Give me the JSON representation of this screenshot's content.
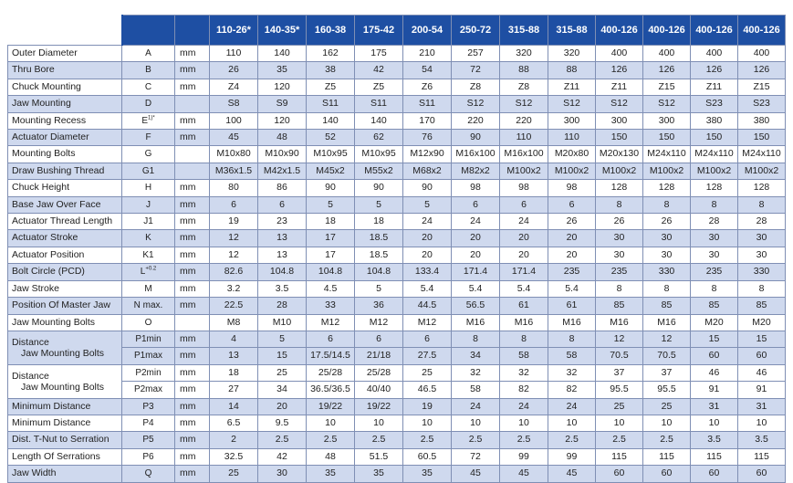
{
  "columns": [
    "110-26*",
    "140-35*",
    "160-38",
    "175-42",
    "200-54",
    "250-72",
    "315-88",
    "315-88",
    "400-126",
    "400-126",
    "400-126",
    "400-126"
  ],
  "rows": [
    {
      "name": "Outer Diameter",
      "sym": "A",
      "unit": "mm",
      "shade": false,
      "values": [
        "110",
        "140",
        "162",
        "175",
        "210",
        "257",
        "320",
        "320",
        "400",
        "400",
        "400",
        "400"
      ]
    },
    {
      "name": "Thru Bore",
      "sym": "B",
      "unit": "mm",
      "shade": true,
      "values": [
        "26",
        "35",
        "38",
        "42",
        "54",
        "72",
        "88",
        "88",
        "126",
        "126",
        "126",
        "126"
      ]
    },
    {
      "name": "Chuck Mounting",
      "sym": "C",
      "unit": "mm",
      "shade": false,
      "values": [
        "Z4",
        "120",
        "Z5",
        "Z5",
        "Z6",
        "Z8",
        "Z8",
        "Z11",
        "Z11",
        "Z15",
        "Z11",
        "Z15"
      ]
    },
    {
      "name": "Jaw Mounting",
      "sym": "D",
      "unit": "",
      "shade": true,
      "values": [
        "S8",
        "S9",
        "S11",
        "S11",
        "S11",
        "S12",
        "S12",
        "S12",
        "S12",
        "S12",
        "S23",
        "S23"
      ]
    },
    {
      "name": "Mounting Recess",
      "sym": "E",
      "sym_sup": "1)*",
      "unit": "mm",
      "shade": false,
      "values": [
        "100",
        "120",
        "140",
        "140",
        "170",
        "220",
        "220",
        "300",
        "300",
        "300",
        "380",
        "380"
      ]
    },
    {
      "name": "Actuator Diameter",
      "sym": "F",
      "unit": "mm",
      "shade": true,
      "values": [
        "45",
        "48",
        "52",
        "62",
        "76",
        "90",
        "110",
        "110",
        "150",
        "150",
        "150",
        "150"
      ]
    },
    {
      "name": "Mounting Bolts",
      "sym": "G",
      "unit": "",
      "shade": false,
      "values": [
        "M10x80",
        "M10x90",
        "M10x95",
        "M10x95",
        "M12x90",
        "M16x100",
        "M16x100",
        "M20x80",
        "M20x130",
        "M24x110",
        "M24x110",
        "M24x110"
      ]
    },
    {
      "name": "Draw Bushing Thread",
      "sym": "G1",
      "unit": "",
      "shade": true,
      "values": [
        "M36x1.5",
        "M42x1.5",
        "M45x2",
        "M55x2",
        "M68x2",
        "M82x2",
        "M100x2",
        "M100x2",
        "M100x2",
        "M100x2",
        "M100x2",
        "M100x2"
      ]
    },
    {
      "name": "Chuck Height",
      "sym": "H",
      "unit": "mm",
      "shade": false,
      "values": [
        "80",
        "86",
        "90",
        "90",
        "90",
        "98",
        "98",
        "98",
        "128",
        "128",
        "128",
        "128"
      ]
    },
    {
      "name": "Base Jaw Over Face",
      "sym": "J",
      "unit": "mm",
      "shade": true,
      "values": [
        "6",
        "6",
        "5",
        "5",
        "5",
        "6",
        "6",
        "6",
        "8",
        "8",
        "8",
        "8"
      ]
    },
    {
      "name": "Actuator Thread Length",
      "sym": "J1",
      "unit": "mm",
      "shade": false,
      "values": [
        "19",
        "23",
        "18",
        "18",
        "24",
        "24",
        "24",
        "26",
        "26",
        "26",
        "28",
        "28"
      ]
    },
    {
      "name": "Actuator Stroke",
      "sym": "K",
      "unit": "mm",
      "shade": true,
      "values": [
        "12",
        "13",
        "17",
        "18.5",
        "20",
        "20",
        "20",
        "20",
        "30",
        "30",
        "30",
        "30"
      ]
    },
    {
      "name": "Actuator Position",
      "sym": "K1",
      "unit": "mm",
      "shade": false,
      "values": [
        "12",
        "13",
        "17",
        "18.5",
        "20",
        "20",
        "20",
        "20",
        "30",
        "30",
        "30",
        "30"
      ]
    },
    {
      "name": "Bolt Circle (PCD)",
      "sym": "L",
      "sym_sup": "+0.2",
      "unit": "mm",
      "shade": true,
      "values": [
        "82.6",
        "104.8",
        "104.8",
        "104.8",
        "133.4",
        "171.4",
        "171.4",
        "235",
        "235",
        "330",
        "235",
        "330"
      ]
    },
    {
      "name": "Jaw Stroke",
      "sym": "M",
      "unit": "mm",
      "shade": false,
      "values": [
        "3.2",
        "3.5",
        "4.5",
        "5",
        "5.4",
        "5.4",
        "5.4",
        "5.4",
        "8",
        "8",
        "8",
        "8"
      ]
    },
    {
      "name": "Position Of Master Jaw",
      "sym": "N max.",
      "unit": "mm",
      "shade": true,
      "values": [
        "22.5",
        "28",
        "33",
        "36",
        "44.5",
        "56.5",
        "61",
        "61",
        "85",
        "85",
        "85",
        "85"
      ]
    },
    {
      "name": "Jaw Mounting Bolts",
      "sym": "O",
      "unit": "",
      "shade": false,
      "values": [
        "M8",
        "M10",
        "M12",
        "M12",
        "M12",
        "M16",
        "M16",
        "M16",
        "M16",
        "M16",
        "M20",
        "M20"
      ]
    }
  ],
  "groups": [
    {
      "name1": "Distance",
      "name2": "Jaw Mounting Bolts",
      "unit": "mm",
      "shade": true,
      "sub": [
        {
          "sym": "P1min",
          "values": [
            "4",
            "5",
            "6",
            "6",
            "6",
            "8",
            "8",
            "8",
            "12",
            "12",
            "15",
            "15"
          ]
        },
        {
          "sym": "P1max",
          "values": [
            "13",
            "15",
            "17.5/14.5",
            "21/18",
            "27.5",
            "34",
            "58",
            "58",
            "70.5",
            "70.5",
            "60",
            "60"
          ]
        }
      ]
    },
    {
      "name1": "Distance",
      "name2": "Jaw Mounting Bolts",
      "unit": "mm",
      "shade": false,
      "sub": [
        {
          "sym": "P2min",
          "values": [
            "18",
            "25",
            "25/28",
            "25/28",
            "25",
            "32",
            "32",
            "32",
            "37",
            "37",
            "46",
            "46"
          ]
        },
        {
          "sym": "P2max",
          "values": [
            "27",
            "34",
            "36.5/36.5",
            "40/40",
            "46.5",
            "58",
            "82",
            "82",
            "95.5",
            "95.5",
            "91",
            "91"
          ]
        }
      ]
    }
  ],
  "rows2": [
    {
      "name": "Minimum Distance",
      "sym": "P3",
      "unit": "mm",
      "shade": true,
      "values": [
        "14",
        "20",
        "19/22",
        "19/22",
        "19",
        "24",
        "24",
        "24",
        "25",
        "25",
        "31",
        "31"
      ]
    },
    {
      "name": "Minimum Distance",
      "sym": "P4",
      "unit": "mm",
      "shade": false,
      "values": [
        "6.5",
        "9.5",
        "10",
        "10",
        "10",
        "10",
        "10",
        "10",
        "10",
        "10",
        "10",
        "10"
      ]
    },
    {
      "name": "Dist. T-Nut to Serration",
      "sym": "P5",
      "unit": "mm",
      "shade": true,
      "values": [
        "2",
        "2.5",
        "2.5",
        "2.5",
        "2.5",
        "2.5",
        "2.5",
        "2.5",
        "2.5",
        "2.5",
        "3.5",
        "3.5"
      ]
    },
    {
      "name": "Length Of Serrations",
      "sym": "P6",
      "unit": "mm",
      "shade": false,
      "values": [
        "32.5",
        "42",
        "48",
        "51.5",
        "60.5",
        "72",
        "99",
        "99",
        "115",
        "115",
        "115",
        "115"
      ]
    },
    {
      "name": "Jaw Width",
      "sym": "Q",
      "unit": "mm",
      "shade": true,
      "values": [
        "25",
        "30",
        "35",
        "35",
        "35",
        "45",
        "45",
        "45",
        "60",
        "60",
        "60",
        "60"
      ]
    }
  ]
}
